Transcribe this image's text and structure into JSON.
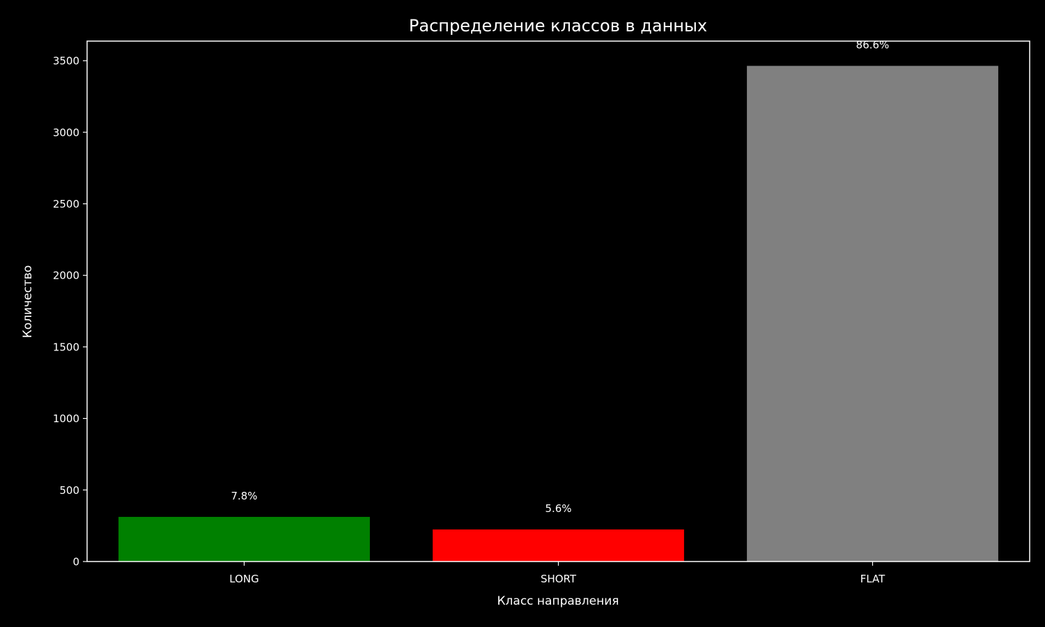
{
  "chart_data": {
    "type": "bar",
    "title": "Распределение классов в данных",
    "xlabel": "Класс направления",
    "ylabel": "Количество",
    "categories": [
      "LONG",
      "SHORT",
      "FLAT"
    ],
    "values": [
      312,
      224,
      3464
    ],
    "bar_labels": [
      "7.8%",
      "5.6%",
      "86.6%"
    ],
    "colors": [
      "#008000",
      "#ff0000",
      "#808080"
    ],
    "ylim": [
      0,
      3637
    ],
    "yticks": [
      0,
      500,
      1000,
      1500,
      2000,
      2500,
      3000,
      3500
    ],
    "grid": false,
    "background": "#000000",
    "foreground": "#ffffff"
  }
}
